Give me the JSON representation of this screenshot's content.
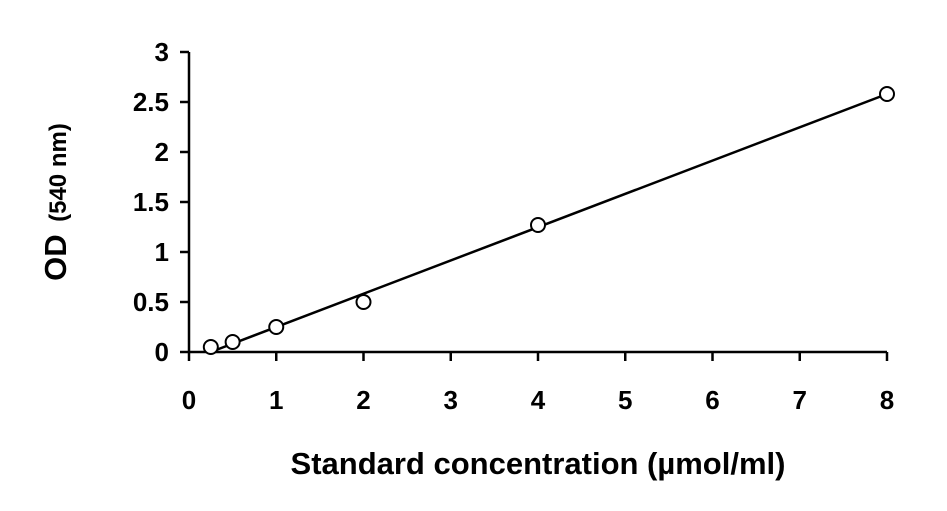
{
  "chart_data": {
    "type": "scatter",
    "xlabel": "Standard concentration (µmol/ml)",
    "ylabel_main": "OD",
    "ylabel_unit": "(540 nm)",
    "xlim": [
      0,
      8
    ],
    "ylim": [
      0,
      3
    ],
    "x_ticks": [
      0,
      1,
      2,
      3,
      4,
      5,
      6,
      7,
      8
    ],
    "y_ticks": [
      "0",
      "0.5",
      "1",
      "1.5",
      "2",
      "2.5",
      "3"
    ],
    "grid": false,
    "series": [
      {
        "marker": "open-circle",
        "color": "#000000",
        "points": [
          {
            "x": 0.25,
            "y": 0.05
          },
          {
            "x": 0.5,
            "y": 0.1
          },
          {
            "x": 1,
            "y": 0.25
          },
          {
            "x": 2,
            "y": 0.5
          },
          {
            "x": 4,
            "y": 1.27
          },
          {
            "x": 8,
            "y": 2.58
          }
        ]
      }
    ],
    "trendline": {
      "x0": 0.25,
      "y0": 0.0,
      "x1": 8,
      "y1": 2.58,
      "color": "#000000"
    }
  }
}
